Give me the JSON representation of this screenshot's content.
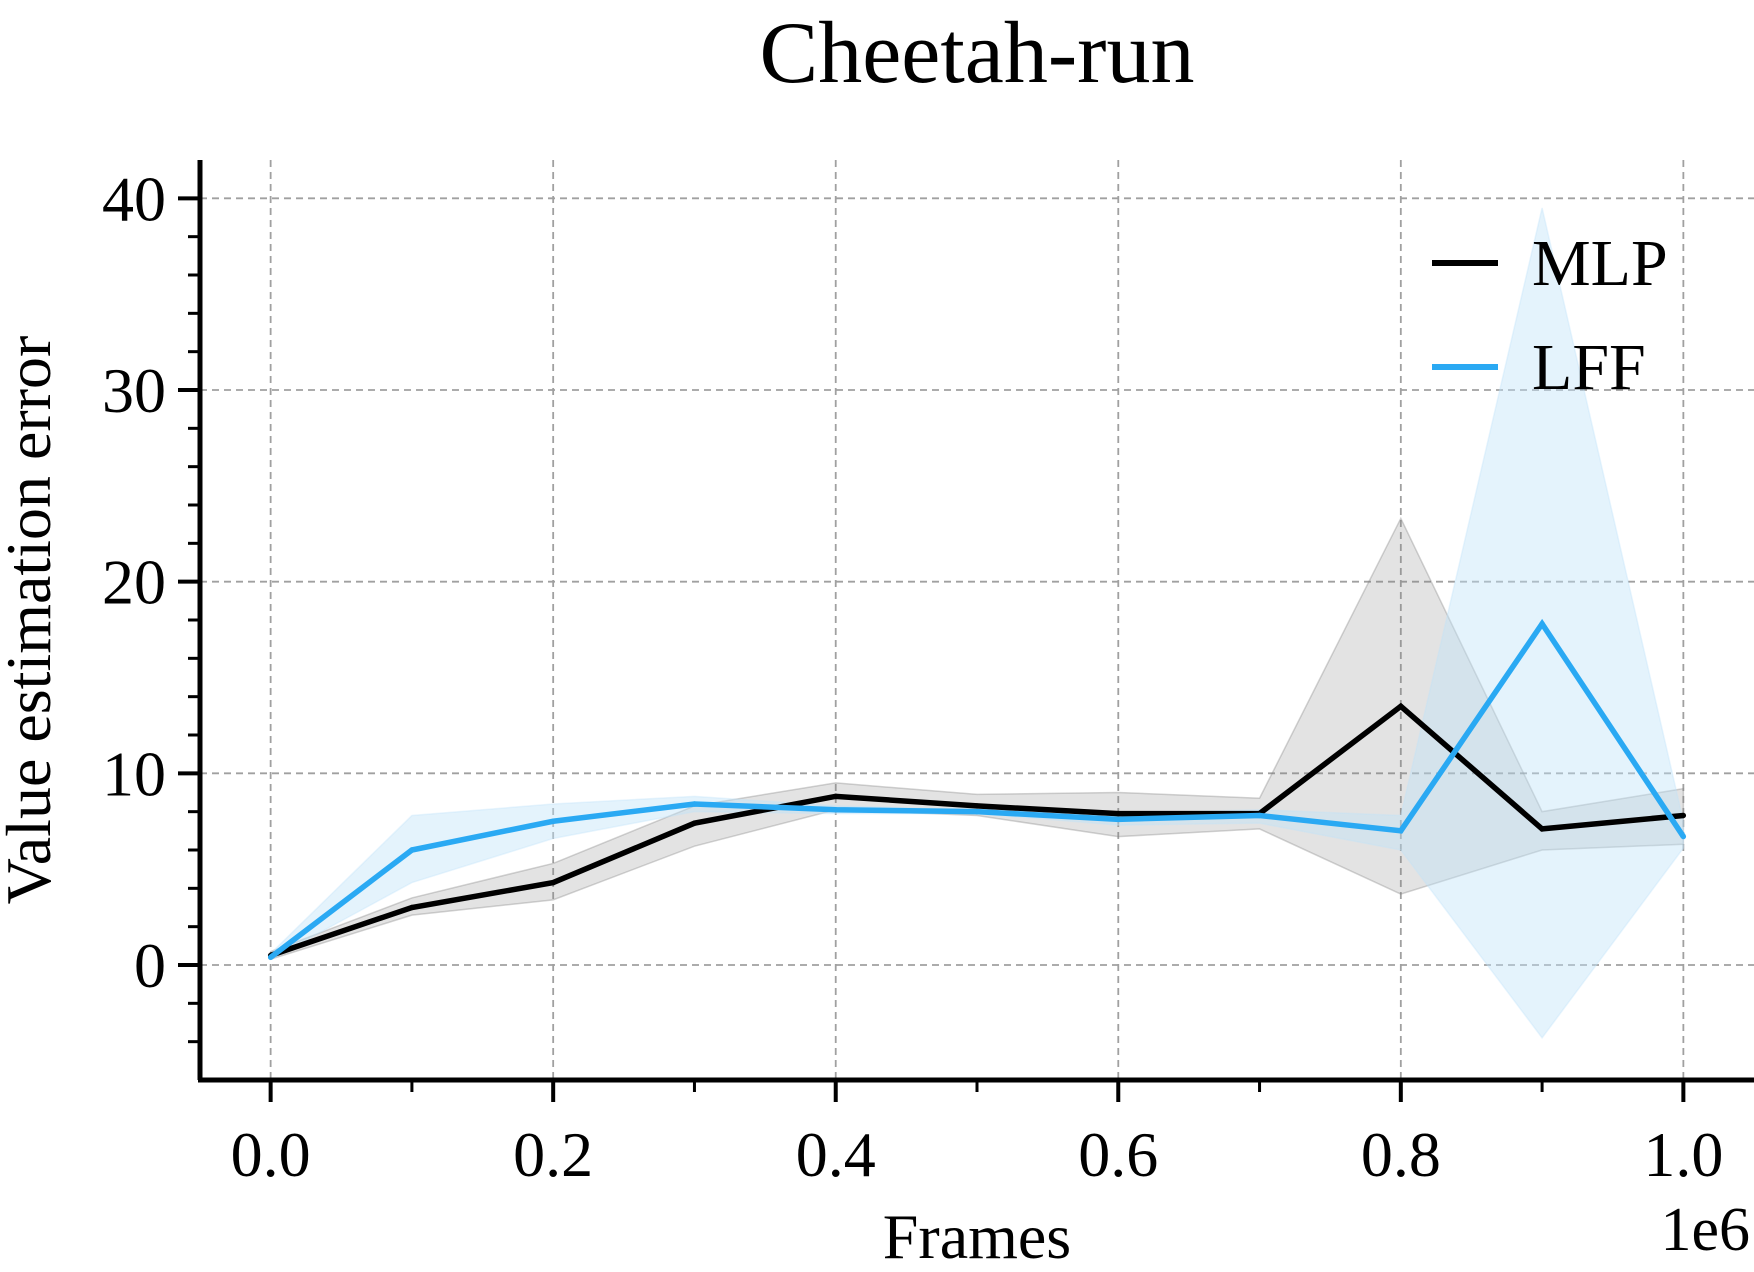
{
  "chart_data": {
    "type": "line",
    "title": "Cheetah-run",
    "xlabel": "Frames",
    "ylabel": "Value estimation error",
    "x_multiplier_label": "1e6",
    "x": [
      0.0,
      0.1,
      0.2,
      0.3,
      0.4,
      0.5,
      0.6,
      0.7,
      0.8,
      0.9,
      1.0
    ],
    "xlim": [
      -0.05,
      1.05
    ],
    "ylim": [
      -6,
      42
    ],
    "xticks": [
      0.0,
      0.2,
      0.4,
      0.6,
      0.8,
      1.0
    ],
    "xtick_labels": [
      "0.0",
      "0.2",
      "0.4",
      "0.6",
      "0.8",
      "1.0"
    ],
    "yticks": [
      0,
      10,
      20,
      30,
      40
    ],
    "ytick_labels": [
      "0",
      "10",
      "20",
      "30",
      "40"
    ],
    "grid": true,
    "legend_position": "top-right",
    "series": [
      {
        "name": "MLP",
        "color": "#000000",
        "band_color": "#808080",
        "values": [
          0.5,
          3.0,
          4.3,
          7.4,
          8.8,
          8.3,
          7.9,
          7.9,
          13.5,
          7.1,
          7.8
        ],
        "lower": [
          0.3,
          2.6,
          3.4,
          6.2,
          8.1,
          7.8,
          6.7,
          7.1,
          3.7,
          6.0,
          6.3
        ],
        "upper": [
          0.7,
          3.5,
          5.3,
          8.3,
          9.5,
          8.9,
          9.0,
          8.7,
          23.3,
          8.0,
          9.2
        ]
      },
      {
        "name": "LFF",
        "color": "#2aa9f3",
        "band_color": "#bfe3f8",
        "values": [
          0.4,
          6.0,
          7.5,
          8.4,
          8.1,
          8.0,
          7.6,
          7.8,
          7.0,
          17.8,
          6.7
        ],
        "lower": [
          0.3,
          4.3,
          6.6,
          8.0,
          7.9,
          7.9,
          7.3,
          7.4,
          6.0,
          -3.8,
          6.1
        ],
        "upper": [
          0.6,
          7.8,
          8.4,
          8.8,
          8.3,
          8.1,
          7.9,
          8.1,
          7.8,
          39.5,
          7.5
        ]
      }
    ]
  }
}
